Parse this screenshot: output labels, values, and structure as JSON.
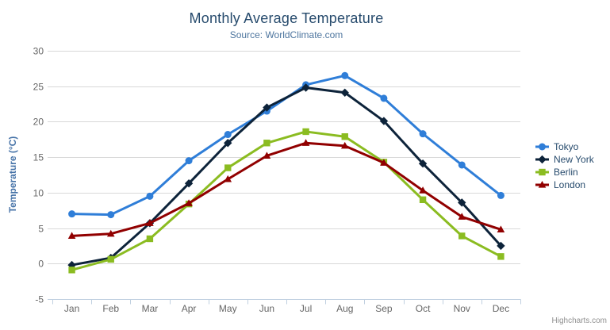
{
  "chart_data": {
    "type": "line",
    "title": "Monthly Average Temperature",
    "subtitle": "Source: WorldClimate.com",
    "xlabel": "",
    "ylabel": "Temperature (°C)",
    "categories": [
      "Jan",
      "Feb",
      "Mar",
      "Apr",
      "May",
      "Jun",
      "Jul",
      "Aug",
      "Sep",
      "Oct",
      "Nov",
      "Dec"
    ],
    "y_ticks": [
      -5,
      0,
      5,
      10,
      15,
      20,
      25,
      30
    ],
    "ylim": [
      -5,
      30
    ],
    "grid": true,
    "legend_position": "right",
    "series": [
      {
        "name": "Tokyo",
        "color": "#2f7ed8",
        "marker": "circle",
        "values": [
          7.0,
          6.9,
          9.5,
          14.5,
          18.2,
          21.5,
          25.2,
          26.5,
          23.3,
          18.3,
          13.9,
          9.6
        ]
      },
      {
        "name": "New York",
        "color": "#0d233a",
        "marker": "diamond",
        "values": [
          -0.2,
          0.8,
          5.7,
          11.3,
          17.0,
          22.0,
          24.8,
          24.1,
          20.1,
          14.1,
          8.6,
          2.5
        ]
      },
      {
        "name": "Berlin",
        "color": "#8bbc21",
        "marker": "square",
        "values": [
          -0.9,
          0.6,
          3.5,
          8.4,
          13.5,
          17.0,
          18.6,
          17.9,
          14.3,
          9.0,
          3.9,
          1.0
        ]
      },
      {
        "name": "London",
        "color": "#910000",
        "marker": "triangle",
        "values": [
          3.9,
          4.2,
          5.7,
          8.5,
          11.9,
          15.2,
          17.0,
          16.6,
          14.2,
          10.3,
          6.6,
          4.8
        ]
      }
    ]
  },
  "credits": "Highcharts.com",
  "icons": {
    "context_menu": "hamburger-icon"
  },
  "colors": {
    "title_text": "#274b6d",
    "subtitle_text": "#4d759e",
    "axis_title_text": "#4572a7",
    "tick_label_text": "#666666",
    "grid_line": "#d8d8d8",
    "axis_line": "#c0d0e0",
    "legend_text": "#274b6d",
    "credits_text": "#909090",
    "hamburger_icon": "#666666",
    "background": "#ffffff"
  }
}
